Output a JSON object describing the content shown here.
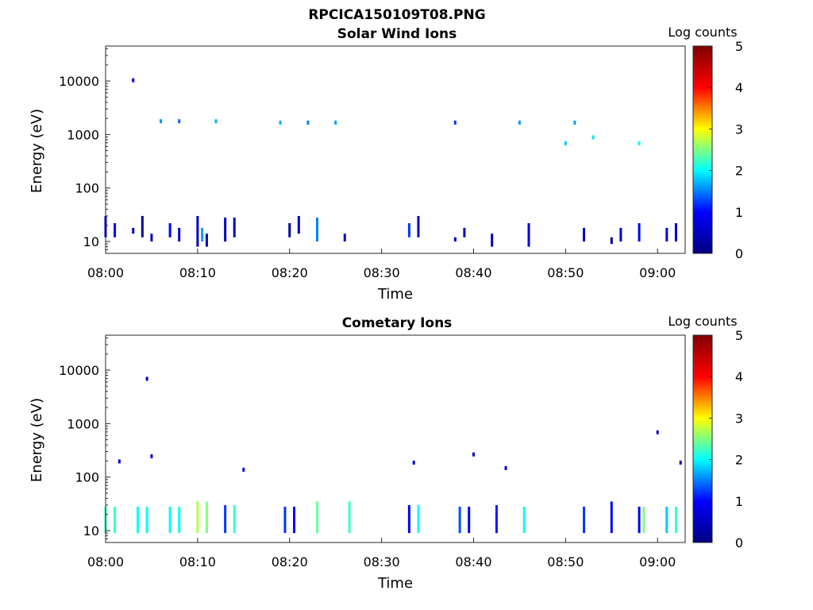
{
  "figure": {
    "title": "RPCICA150109T08.PNG"
  },
  "colormap": {
    "name": "jet",
    "stops": [
      "#000080",
      "#0000ff",
      "#00ffff",
      "#ffff00",
      "#ff0000",
      "#800000"
    ]
  },
  "chart_data": [
    {
      "type": "heatmap",
      "title": "Solar Wind Ions",
      "xlabel": "Time",
      "ylabel": "Energy (eV)",
      "yscale": "log",
      "ylim": [
        6,
        45000
      ],
      "xlim": [
        "08:00",
        "09:03"
      ],
      "x_ticks": [
        "08:00",
        "08:10",
        "08:20",
        "08:30",
        "08:40",
        "08:50",
        "09:00"
      ],
      "y_ticks": [
        10,
        100,
        1000,
        10000
      ],
      "y_tick_labels": [
        "10",
        "100",
        "1000",
        "10000"
      ],
      "colorbar": {
        "label": "Log counts",
        "range": [
          0,
          5
        ],
        "ticks": [
          "0",
          "1",
          "2",
          "3",
          "4",
          "5"
        ]
      },
      "grid": false,
      "low_energy_bursts": [
        {
          "t": "08:00",
          "e": [
            12,
            30
          ],
          "v": 0.5
        },
        {
          "t": "08:01",
          "e": [
            12,
            22
          ],
          "v": 1.0
        },
        {
          "t": "08:03",
          "e": [
            14,
            18
          ],
          "v": 0.3
        },
        {
          "t": "08:04",
          "e": [
            12,
            30
          ],
          "v": 0.2
        },
        {
          "t": "08:05",
          "e": [
            10,
            14
          ],
          "v": 0.5
        },
        {
          "t": "08:07",
          "e": [
            12,
            22
          ],
          "v": 1.0
        },
        {
          "t": "08:08",
          "e": [
            10,
            18
          ],
          "v": 0.6
        },
        {
          "t": "08:10",
          "e": [
            8,
            30
          ],
          "v": 0.5
        },
        {
          "t": "08:10.5",
          "e": [
            10,
            18
          ],
          "v": 1.6
        },
        {
          "t": "08:11",
          "e": [
            8,
            14
          ],
          "v": 0.5
        },
        {
          "t": "08:13",
          "e": [
            10,
            28
          ],
          "v": 0.4
        },
        {
          "t": "08:14",
          "e": [
            12,
            28
          ],
          "v": 0.5
        },
        {
          "t": "08:20",
          "e": [
            12,
            22
          ],
          "v": 0.2
        },
        {
          "t": "08:21",
          "e": [
            14,
            30
          ],
          "v": 0.5
        },
        {
          "t": "08:23",
          "e": [
            10,
            28
          ],
          "v": 1.5
        },
        {
          "t": "08:26",
          "e": [
            10,
            14
          ],
          "v": 0.7
        },
        {
          "t": "08:33",
          "e": [
            12,
            22
          ],
          "v": 1.2
        },
        {
          "t": "08:34",
          "e": [
            12,
            30
          ],
          "v": 0.5
        },
        {
          "t": "08:38",
          "e": [
            10,
            12
          ],
          "v": 0.6
        },
        {
          "t": "08:39",
          "e": [
            12,
            18
          ],
          "v": 0.5
        },
        {
          "t": "08:42",
          "e": [
            8,
            14
          ],
          "v": 0.6
        },
        {
          "t": "08:46",
          "e": [
            8,
            22
          ],
          "v": 0.8
        },
        {
          "t": "08:52",
          "e": [
            10,
            18
          ],
          "v": 0.6
        },
        {
          "t": "08:55",
          "e": [
            9,
            12
          ],
          "v": 0.1
        },
        {
          "t": "08:56",
          "e": [
            10,
            18
          ],
          "v": 0.6
        },
        {
          "t": "08:58",
          "e": [
            10,
            22
          ],
          "v": 1.0
        },
        {
          "t": "09:01",
          "e": [
            10,
            18
          ],
          "v": 1.0
        },
        {
          "t": "09:02",
          "e": [
            10,
            22
          ],
          "v": 0.7
        }
      ],
      "high_energy_points": [
        {
          "t": "08:03",
          "e": 10500,
          "v": 0.7
        },
        {
          "t": "08:06",
          "e": 1800,
          "v": 1.6
        },
        {
          "t": "08:08",
          "e": 1800,
          "v": 1.4
        },
        {
          "t": "08:12",
          "e": 1800,
          "v": 1.7
        },
        {
          "t": "08:19",
          "e": 1700,
          "v": 1.7
        },
        {
          "t": "08:22",
          "e": 1700,
          "v": 1.5
        },
        {
          "t": "08:25",
          "e": 1700,
          "v": 1.6
        },
        {
          "t": "08:38",
          "e": 1700,
          "v": 1.2
        },
        {
          "t": "08:45",
          "e": 1700,
          "v": 1.6
        },
        {
          "t": "08:50",
          "e": 700,
          "v": 1.8
        },
        {
          "t": "08:51",
          "e": 1700,
          "v": 1.6
        },
        {
          "t": "08:53",
          "e": 900,
          "v": 1.9
        },
        {
          "t": "08:58",
          "e": 700,
          "v": 2.0
        }
      ]
    },
    {
      "type": "heatmap",
      "title": "Cometary Ions",
      "xlabel": "Time",
      "ylabel": "Energy (eV)",
      "yscale": "log",
      "ylim": [
        6,
        45000
      ],
      "xlim": [
        "08:00",
        "09:03"
      ],
      "x_ticks": [
        "08:00",
        "08:10",
        "08:20",
        "08:30",
        "08:40",
        "08:50",
        "09:00"
      ],
      "y_ticks": [
        10,
        100,
        1000,
        10000
      ],
      "y_tick_labels": [
        "10",
        "100",
        "1000",
        "10000"
      ],
      "colorbar": {
        "label": "Log counts",
        "range": [
          0,
          5
        ],
        "ticks": [
          "0",
          "1",
          "2",
          "3",
          "4",
          "5"
        ]
      },
      "grid": false,
      "low_energy_bursts": [
        {
          "t": "08:00",
          "e": [
            9,
            28
          ],
          "v": 2.2
        },
        {
          "t": "08:01",
          "e": [
            9,
            28
          ],
          "v": 2.2
        },
        {
          "t": "08:03.5",
          "e": [
            9,
            28
          ],
          "v": 2.0
        },
        {
          "t": "08:04.5",
          "e": [
            9,
            28
          ],
          "v": 2.0
        },
        {
          "t": "08:07",
          "e": [
            9,
            28
          ],
          "v": 2.0
        },
        {
          "t": "08:08",
          "e": [
            9,
            28
          ],
          "v": 2.0
        },
        {
          "t": "08:10",
          "e": [
            9,
            35
          ],
          "v": 2.7
        },
        {
          "t": "08:11",
          "e": [
            9,
            35
          ],
          "v": 2.5
        },
        {
          "t": "08:13",
          "e": [
            9,
            30
          ],
          "v": 1.2
        },
        {
          "t": "08:14",
          "e": [
            9,
            30
          ],
          "v": 2.2
        },
        {
          "t": "08:19.5",
          "e": [
            9,
            28
          ],
          "v": 1.2
        },
        {
          "t": "08:20.5",
          "e": [
            9,
            28
          ],
          "v": 1.0
        },
        {
          "t": "08:23",
          "e": [
            9,
            35
          ],
          "v": 2.4
        },
        {
          "t": "08:26.5",
          "e": [
            9,
            35
          ],
          "v": 2.2
        },
        {
          "t": "08:33",
          "e": [
            9,
            30
          ],
          "v": 1.0
        },
        {
          "t": "08:34",
          "e": [
            9,
            30
          ],
          "v": 2.0
        },
        {
          "t": "08:38.5",
          "e": [
            9,
            28
          ],
          "v": 1.3
        },
        {
          "t": "08:39.5",
          "e": [
            9,
            28
          ],
          "v": 1.0
        },
        {
          "t": "08:42.5",
          "e": [
            9,
            30
          ],
          "v": 1.1
        },
        {
          "t": "08:45.5",
          "e": [
            9,
            28
          ],
          "v": 2.0
        },
        {
          "t": "08:52",
          "e": [
            9,
            28
          ],
          "v": 1.2
        },
        {
          "t": "08:55",
          "e": [
            9,
            35
          ],
          "v": 1.0
        },
        {
          "t": "08:58",
          "e": [
            9,
            28
          ],
          "v": 1.0
        },
        {
          "t": "08:58.5",
          "e": [
            9,
            28
          ],
          "v": 2.5
        },
        {
          "t": "09:01",
          "e": [
            9,
            28
          ],
          "v": 1.8
        },
        {
          "t": "09:02",
          "e": [
            9,
            28
          ],
          "v": 2.2
        }
      ],
      "high_energy_points": [
        {
          "t": "08:04.5",
          "e": 7000,
          "v": 0.6
        },
        {
          "t": "08:01.5",
          "e": 200,
          "v": 0.6
        },
        {
          "t": "08:05",
          "e": 250,
          "v": 0.6
        },
        {
          "t": "08:15",
          "e": 140,
          "v": 0.6
        },
        {
          "t": "08:33.5",
          "e": 190,
          "v": 0.6
        },
        {
          "t": "08:40",
          "e": 270,
          "v": 0.6
        },
        {
          "t": "08:43.5",
          "e": 150,
          "v": 0.6
        },
        {
          "t": "09:00",
          "e": 700,
          "v": 0.6
        },
        {
          "t": "09:02.5",
          "e": 190,
          "v": 0.6
        }
      ]
    }
  ]
}
